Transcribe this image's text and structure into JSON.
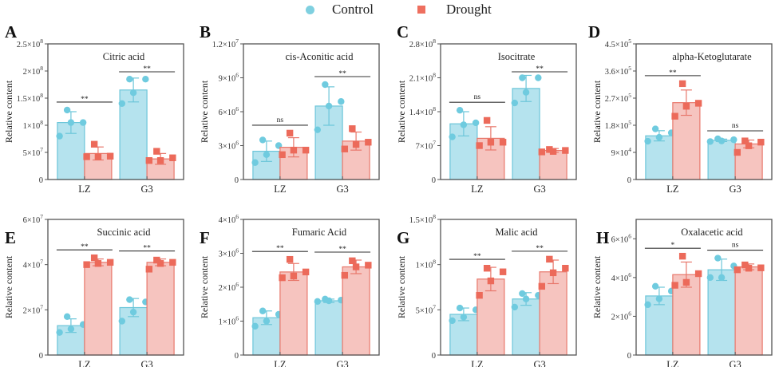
{
  "legend": {
    "items": [
      {
        "label": "Control",
        "marker": "circle",
        "color": "#7fd0e0"
      },
      {
        "label": "Drought",
        "marker": "square",
        "color": "#ee6f5f"
      }
    ]
  },
  "colors": {
    "control_fill": "#b5e3ee",
    "control_edge": "#6cc6d9",
    "control_point": "#6fcbdf",
    "drought_fill": "#f6c4bf",
    "drought_edge": "#e8776b",
    "drought_point": "#ec6a5a",
    "axis": "#555555"
  },
  "chart_data": [
    {
      "panel": "A",
      "type": "bar",
      "title": "Citric acid",
      "xlabel": "",
      "ylabel": "Relative content",
      "categories": [
        "LZ",
        "G3"
      ],
      "ylim": [
        0,
        250000000
      ],
      "yticks": [
        {
          "v": 0,
          "m": "0",
          "e": ""
        },
        {
          "v": 50000000,
          "m": "5×10",
          "e": "7"
        },
        {
          "v": 100000000,
          "m": "1×10",
          "e": "8"
        },
        {
          "v": 150000000,
          "m": "1.5×10",
          "e": "8"
        },
        {
          "v": 200000000,
          "m": "2×10",
          "e": "8"
        },
        {
          "v": 250000000,
          "m": "2.5×10",
          "e": "8"
        }
      ],
      "series": [
        {
          "name": "Control",
          "values": [
            105000000,
            165000000
          ],
          "errors": [
            20000000,
            22000000
          ],
          "points": [
            [
              128000000,
              105000000,
              105000000,
              80000000
            ],
            [
              185000000,
              185000000,
              160000000,
              140000000
            ]
          ]
        },
        {
          "name": "Drought",
          "values": [
            48000000,
            38000000
          ],
          "errors": [
            12000000,
            10000000
          ],
          "points": [
            [
              65000000,
              43000000,
              42000000,
              42000000
            ],
            [
              52000000,
              40000000,
              35000000,
              35000000
            ]
          ]
        }
      ],
      "significance": [
        "**",
        "**"
      ]
    },
    {
      "panel": "B",
      "type": "bar",
      "title": "cis-Aconitic acid",
      "xlabel": "",
      "ylabel": "Relative content",
      "categories": [
        "LZ",
        "G3"
      ],
      "ylim": [
        0,
        12000000
      ],
      "yticks": [
        {
          "v": 0,
          "m": "0",
          "e": ""
        },
        {
          "v": 3000000,
          "m": "3×10",
          "e": "6"
        },
        {
          "v": 6000000,
          "m": "6×10",
          "e": "6"
        },
        {
          "v": 9000000,
          "m": "9×10",
          "e": "6"
        },
        {
          "v": 12000000,
          "m": "1.2×10",
          "e": "7"
        }
      ],
      "series": [
        {
          "name": "Control",
          "values": [
            2500000,
            6500000
          ],
          "errors": [
            900000,
            1700000
          ],
          "points": [
            [
              3500000,
              3000000,
              2200000,
              1500000
            ],
            [
              8400000,
              6900000,
              6500000,
              4400000
            ]
          ]
        },
        {
          "name": "Drought",
          "values": [
            2850000,
            3400000
          ],
          "errors": [
            850000,
            800000
          ],
          "points": [
            [
              4100000,
              2600000,
              2600000,
              2200000
            ],
            [
              4500000,
              3300000,
              3100000,
              2700000
            ]
          ]
        }
      ],
      "significance": [
        "ns",
        "**"
      ]
    },
    {
      "panel": "C",
      "type": "bar",
      "title": "Isocitrate",
      "xlabel": "",
      "ylabel": "Relative content",
      "categories": [
        "LZ",
        "G3"
      ],
      "ylim": [
        0,
        280000000
      ],
      "yticks": [
        {
          "v": 0,
          "m": "0",
          "e": ""
        },
        {
          "v": 70000000,
          "m": "7×10",
          "e": "7"
        },
        {
          "v": 140000000,
          "m": "1.4×10",
          "e": "8"
        },
        {
          "v": 210000000,
          "m": "2.1×10",
          "e": "8"
        },
        {
          "v": 280000000,
          "m": "2.8×10",
          "e": "8"
        }
      ],
      "series": [
        {
          "name": "Control",
          "values": [
            115000000,
            188000000
          ],
          "errors": [
            25000000,
            27000000
          ],
          "points": [
            [
              143000000,
              117000000,
              113000000,
              88000000
            ],
            [
              210000000,
              210000000,
              180000000,
              158000000
            ]
          ]
        },
        {
          "name": "Drought",
          "values": [
            85000000,
            60000000
          ],
          "errors": [
            24000000,
            4000000
          ],
          "points": [
            [
              122000000,
              77000000,
              77000000,
              70000000
            ],
            [
              62000000,
              60000000,
              58000000,
              57000000
            ]
          ]
        }
      ],
      "significance": [
        "ns",
        "**"
      ]
    },
    {
      "panel": "D",
      "type": "bar",
      "title": "alpha-Ketoglutarate",
      "xlabel": "",
      "ylabel": "Relative content",
      "categories": [
        "LZ",
        "G3"
      ],
      "ylim": [
        0,
        450000
      ],
      "yticks": [
        {
          "v": 0,
          "m": "0",
          "e": ""
        },
        {
          "v": 90000,
          "m": "9×10",
          "e": "4"
        },
        {
          "v": 180000,
          "m": "1.8×10",
          "e": "5"
        },
        {
          "v": 270000,
          "m": "2.7×10",
          "e": "5"
        },
        {
          "v": 360000,
          "m": "3.6×10",
          "e": "5"
        },
        {
          "v": 450000,
          "m": "4.5×10",
          "e": "5"
        }
      ],
      "series": [
        {
          "name": "Control",
          "values": [
            145000,
            130000
          ],
          "errors": [
            17000,
            4000
          ],
          "points": [
            [
              168000,
              155000,
              140000,
              127000
            ],
            [
              135000,
              132000,
              128000,
              126000
            ]
          ]
        },
        {
          "name": "Drought",
          "values": [
            255000,
            118000
          ],
          "errors": [
            42000,
            13000
          ],
          "points": [
            [
              318000,
              253000,
              243000,
              210000
            ],
            [
              128000,
              124000,
              112000,
              90000
            ]
          ]
        }
      ],
      "significance": [
        "**",
        "ns"
      ]
    },
    {
      "panel": "E",
      "type": "bar",
      "title": "Succinic acid",
      "xlabel": "",
      "ylabel": "Relative content",
      "categories": [
        "LZ",
        "G3"
      ],
      "ylim": [
        0,
        60000000
      ],
      "yticks": [
        {
          "v": 0,
          "m": "0",
          "e": ""
        },
        {
          "v": 20000000,
          "m": "2×10",
          "e": "7"
        },
        {
          "v": 40000000,
          "m": "4×10",
          "e": "7"
        },
        {
          "v": 60000000,
          "m": "6×10",
          "e": "7"
        }
      ],
      "series": [
        {
          "name": "Control",
          "values": [
            13000000,
            21000000
          ],
          "errors": [
            3000000,
            4000000
          ],
          "points": [
            [
              17000000,
              13500000,
              11500000,
              10000000
            ],
            [
              24500000,
              23500000,
              19000000,
              15000000
            ]
          ]
        },
        {
          "name": "Drought",
          "values": [
            41000000,
            41000000
          ],
          "errors": [
            1500000,
            1500000
          ],
          "points": [
            [
              43000000,
              41000000,
              40500000,
              40000000
            ],
            [
              42000000,
              41000000,
              40500000,
              38000000
            ]
          ]
        }
      ],
      "significance": [
        "**",
        "**"
      ]
    },
    {
      "panel": "F",
      "type": "bar",
      "title": "Fumaric Acid",
      "xlabel": "",
      "ylabel": "Relative content",
      "categories": [
        "LZ",
        "G3"
      ],
      "ylim": [
        0,
        4000000
      ],
      "yticks": [
        {
          "v": 0,
          "m": "0",
          "e": ""
        },
        {
          "v": 1000000,
          "m": "1×10",
          "e": "6"
        },
        {
          "v": 2000000,
          "m": "2×10",
          "e": "6"
        },
        {
          "v": 3000000,
          "m": "3×10",
          "e": "6"
        },
        {
          "v": 4000000,
          "m": "4×10",
          "e": "6"
        }
      ],
      "series": [
        {
          "name": "Control",
          "values": [
            1100000,
            1600000
          ],
          "errors": [
            200000,
            50000
          ],
          "points": [
            [
              1300000,
              1200000,
              1000000,
              850000
            ],
            [
              1650000,
              1620000,
              1600000,
              1580000
            ]
          ]
        },
        {
          "name": "Drought",
          "values": [
            2450000,
            2600000
          ],
          "errors": [
            250000,
            200000
          ],
          "points": [
            [
              2820000,
              2450000,
              2330000,
              2280000
            ],
            [
              2780000,
              2650000,
              2600000,
              2350000
            ]
          ]
        }
      ],
      "significance": [
        "**",
        "**"
      ]
    },
    {
      "panel": "G",
      "type": "bar",
      "title": "Malic acid",
      "xlabel": "",
      "ylabel": "Relative content",
      "categories": [
        "LZ",
        "G3"
      ],
      "ylim": [
        0,
        150000000
      ],
      "yticks": [
        {
          "v": 0,
          "m": "0",
          "e": ""
        },
        {
          "v": 50000000,
          "m": "5×10",
          "e": "7"
        },
        {
          "v": 100000000,
          "m": "1×10",
          "e": "8"
        },
        {
          "v": 150000000,
          "m": "1.5×10",
          "e": "8"
        }
      ],
      "series": [
        {
          "name": "Control",
          "values": [
            45000000,
            62000000
          ],
          "errors": [
            7000000,
            7000000
          ],
          "points": [
            [
              52000000,
              50000000,
              42000000,
              38000000
            ],
            [
              68000000,
              66000000,
              62000000,
              53000000
            ]
          ]
        },
        {
          "name": "Drought",
          "values": [
            84000000,
            92000000
          ],
          "errors": [
            13000000,
            13000000
          ],
          "points": [
            [
              96000000,
              92000000,
              82000000,
              66000000
            ],
            [
              106000000,
              96000000,
              91000000,
              76000000
            ]
          ]
        }
      ],
      "significance": [
        "**",
        "**"
      ]
    },
    {
      "panel": "H",
      "type": "bar",
      "title": "Oxalacetic acid",
      "xlabel": "",
      "ylabel": "Relative content",
      "categories": [
        "LZ",
        "G3"
      ],
      "ylim": [
        0,
        7000000
      ],
      "yticks": [
        {
          "v": 0,
          "m": "0",
          "e": ""
        },
        {
          "v": 2000000,
          "m": "2×10",
          "e": "6"
        },
        {
          "v": 4000000,
          "m": "4×10",
          "e": "6"
        },
        {
          "v": 6000000,
          "m": "6×10",
          "e": "6"
        }
      ],
      "series": [
        {
          "name": "Control",
          "values": [
            3050000,
            4400000
          ],
          "errors": [
            450000,
            550000
          ],
          "points": [
            [
              3550000,
              3300000,
              2900000,
              2600000
            ],
            [
              5000000,
              4600000,
              4000000,
              4000000
            ]
          ]
        },
        {
          "name": "Drought",
          "values": [
            4150000,
            4550000
          ],
          "errors": [
            650000,
            150000
          ],
          "points": [
            [
              5100000,
              4200000,
              3750000,
              3600000
            ],
            [
              4650000,
              4500000,
              4480000,
              4400000
            ]
          ]
        }
      ],
      "significance": [
        "*",
        "ns"
      ]
    }
  ]
}
